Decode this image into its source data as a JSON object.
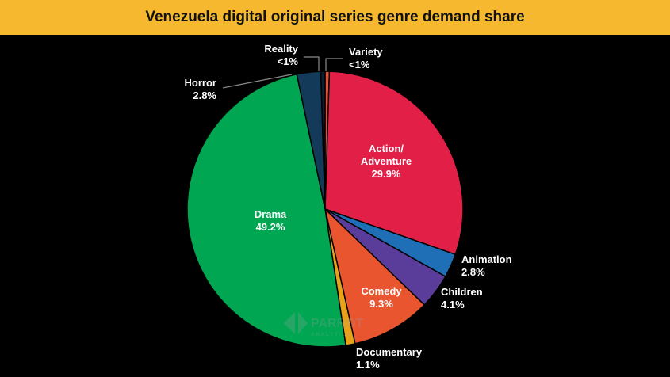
{
  "chart_data": {
    "type": "pie",
    "title": "Venezuela digital original series genre demand share",
    "slices": [
      {
        "name": "Variety",
        "value": 0.5,
        "display": "<1%",
        "color": "#e8522f"
      },
      {
        "name": "Action/ Adventure",
        "value": 29.9,
        "display": "29.9%",
        "color": "#e21f47"
      },
      {
        "name": "Animation",
        "value": 2.8,
        "display": "2.8%",
        "color": "#1f6fb6"
      },
      {
        "name": "Children",
        "value": 4.1,
        "display": "4.1%",
        "color": "#5a3c9a"
      },
      {
        "name": "Comedy",
        "value": 9.3,
        "display": "9.3%",
        "color": "#e8552f"
      },
      {
        "name": "Documentary",
        "value": 1.1,
        "display": "1.1%",
        "color": "#e8a21a"
      },
      {
        "name": "Drama",
        "value": 49.2,
        "display": "49.2%",
        "color": "#00a651"
      },
      {
        "name": "Horror",
        "value": 2.8,
        "display": "2.8%",
        "color": "#143a5a"
      },
      {
        "name": "Reality",
        "value": 0.5,
        "display": "<1%",
        "color": "#0c2033"
      }
    ]
  },
  "watermark": {
    "brand": "PARROT",
    "sub": "ANALYTICS"
  }
}
